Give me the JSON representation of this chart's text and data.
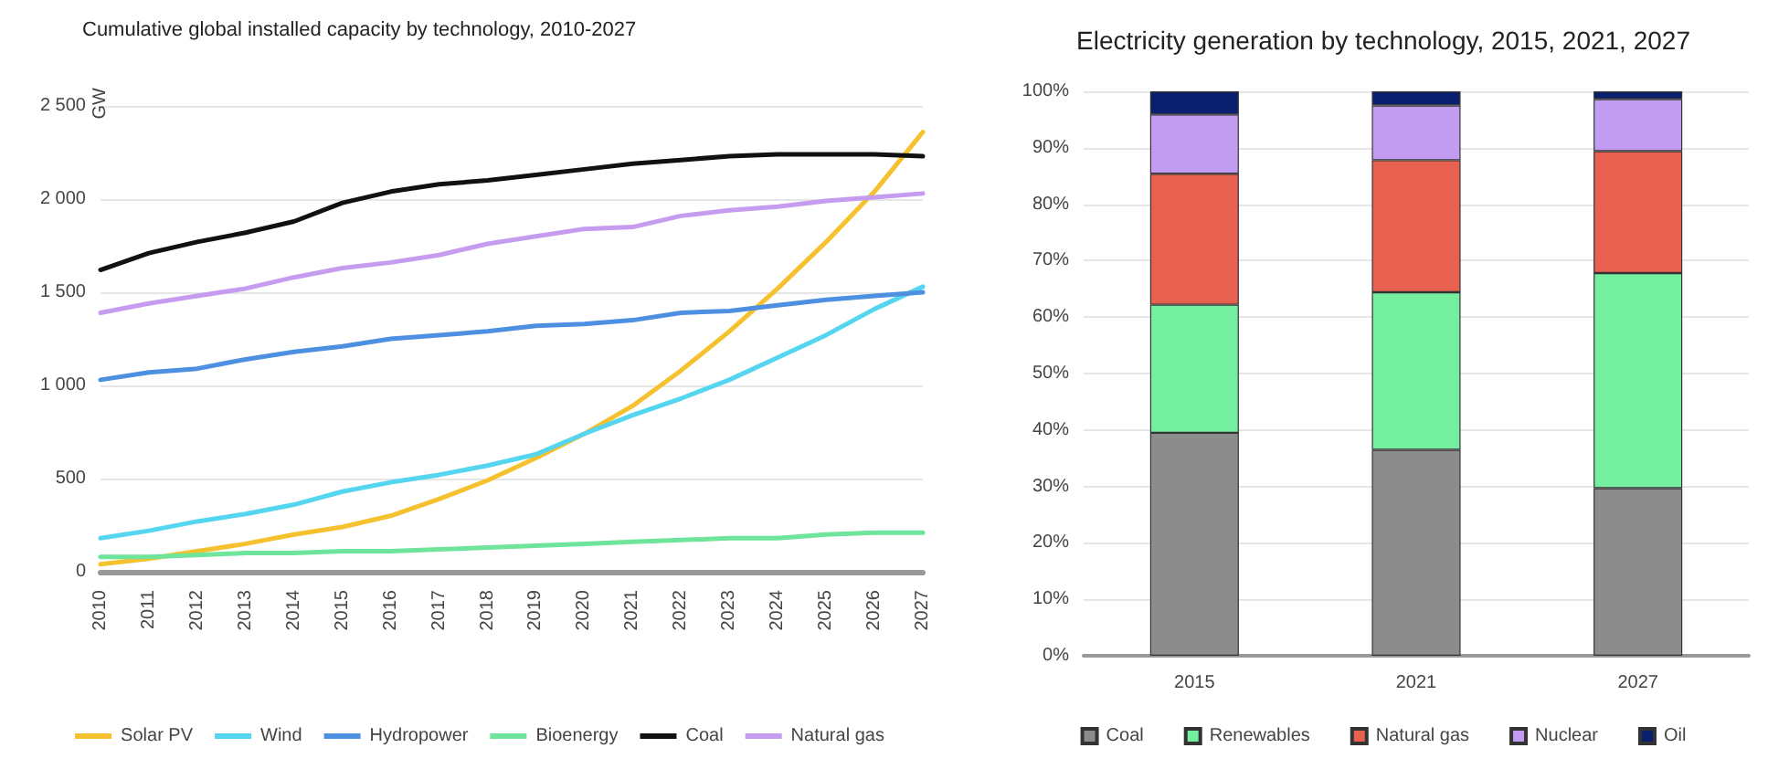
{
  "chart_data": [
    {
      "type": "line",
      "title": "Cumulative global installed capacity by technology, 2010-2027",
      "ylabel": "GW",
      "categories": [
        "2010",
        "2011",
        "2012",
        "2013",
        "2014",
        "2015",
        "2016",
        "2017",
        "2018",
        "2019",
        "2020",
        "2021",
        "2022",
        "2023",
        "2024",
        "2025",
        "2026",
        "2027"
      ],
      "series": [
        {
          "name": "Solar PV",
          "color": "#f5c12e",
          "values": [
            40,
            70,
            110,
            150,
            200,
            240,
            300,
            390,
            490,
            610,
            740,
            890,
            1080,
            1290,
            1520,
            1770,
            2040,
            2360
          ]
        },
        {
          "name": "Wind",
          "color": "#54d5f0",
          "values": [
            180,
            220,
            270,
            310,
            360,
            430,
            480,
            520,
            570,
            630,
            740,
            840,
            930,
            1030,
            1150,
            1270,
            1410,
            1530
          ]
        },
        {
          "name": "Hydropower",
          "color": "#4d8fe0",
          "values": [
            1030,
            1070,
            1090,
            1140,
            1180,
            1210,
            1250,
            1270,
            1290,
            1320,
            1330,
            1350,
            1390,
            1400,
            1430,
            1460,
            1480,
            1500
          ]
        },
        {
          "name": "Bioenergy",
          "color": "#6ee59a",
          "values": [
            80,
            80,
            90,
            100,
            100,
            110,
            110,
            120,
            130,
            140,
            150,
            160,
            170,
            180,
            180,
            200,
            210,
            210
          ]
        },
        {
          "name": "Coal",
          "color": "#111111",
          "values": [
            1620,
            1710,
            1770,
            1820,
            1880,
            1980,
            2040,
            2080,
            2100,
            2130,
            2160,
            2190,
            2210,
            2230,
            2240,
            2240,
            2240,
            2230
          ]
        },
        {
          "name": "Natural gas",
          "color": "#c59cf0",
          "values": [
            1390,
            1440,
            1480,
            1520,
            1580,
            1630,
            1660,
            1700,
            1760,
            1800,
            1840,
            1850,
            1910,
            1940,
            1960,
            1990,
            2010,
            2030
          ]
        }
      ],
      "ylim": [
        0,
        2500
      ],
      "yticks": [
        0,
        500,
        {
          "value": 1000,
          "label": "1 000"
        },
        {
          "value": 1500,
          "label": "1 500"
        },
        {
          "value": 2000,
          "label": "2 000"
        },
        {
          "value": 2500,
          "label": "2 500"
        }
      ],
      "grid": "y",
      "legend": "bottom",
      "marker": "none",
      "line_style": "solid"
    },
    {
      "type": "bar",
      "stacked": true,
      "title": "Electricity generation by technology, 2015, 2021, 2027",
      "categories": [
        "2015",
        "2021",
        "2027"
      ],
      "series": [
        {
          "name": "Coal",
          "color": "#8c8c8c",
          "values": [
            39.5,
            36.5,
            29.7
          ]
        },
        {
          "name": "Renewables",
          "color": "#73ef9f",
          "values": [
            22.7,
            27.9,
            38.1
          ]
        },
        {
          "name": "Natural gas",
          "color": "#e8604f",
          "values": [
            23.2,
            23.4,
            21.6
          ]
        },
        {
          "name": "Nuclear",
          "color": "#c19cf0",
          "values": [
            10.5,
            9.7,
            9.2
          ]
        },
        {
          "name": "Oil",
          "color": "#0a1f6e",
          "values": [
            4.1,
            2.5,
            1.4
          ]
        }
      ],
      "ylim": [
        0,
        100
      ],
      "yticks": [
        {
          "value": 0,
          "label": "0%"
        },
        {
          "value": 10,
          "label": "10%"
        },
        {
          "value": 20,
          "label": "20%"
        },
        {
          "value": 30,
          "label": "30%"
        },
        {
          "value": 40,
          "label": "40%"
        },
        {
          "value": 50,
          "label": "50%"
        },
        {
          "value": 60,
          "label": "60%"
        },
        {
          "value": 70,
          "label": "70%"
        },
        {
          "value": 80,
          "label": "80%"
        },
        {
          "value": 90,
          "label": "90%"
        },
        {
          "value": 100,
          "label": "100%"
        }
      ],
      "grid": "y",
      "legend": "bottom"
    }
  ]
}
